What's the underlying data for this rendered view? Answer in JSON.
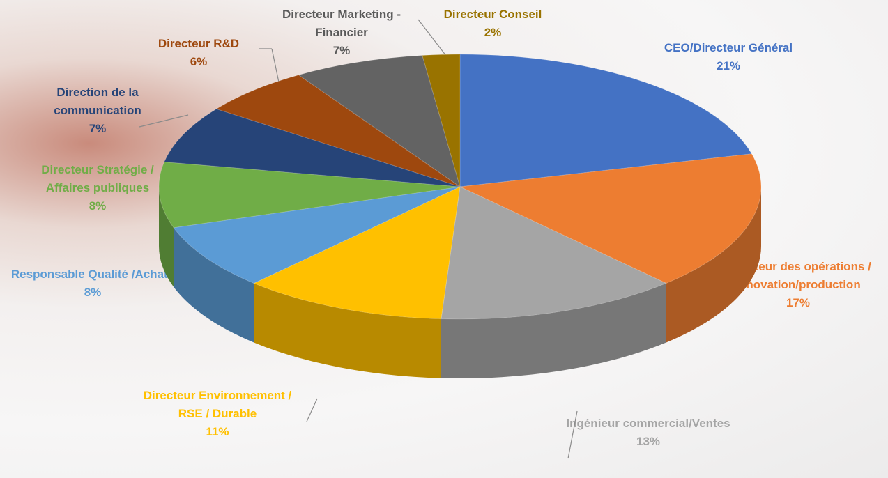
{
  "chart_data": {
    "type": "pie",
    "categories": [
      "CEO/Directeur Général",
      "Directeur des opérations / innovation/production",
      "Ingénieur commercial/Ventes",
      "Directeur Environnement / RSE / Durable",
      "Responsable Qualité /Achats",
      "Directeur Stratégie / Affaires publiques",
      "Direction de la communication",
      "Directeur R&D",
      "Directeur Marketing - Financier",
      "Directeur Conseil"
    ],
    "values": [
      21,
      17,
      13,
      11,
      8,
      8,
      7,
      6,
      7,
      2
    ],
    "value_labels": [
      "21%",
      "17%",
      "13%",
      "11%",
      "8%",
      "8%",
      "7%",
      "6%",
      "7%",
      "2%"
    ],
    "colors": [
      "#4472c4",
      "#ed7d31",
      "#a5a5a5",
      "#ffc000",
      "#5b9bd5",
      "#70ad47",
      "#264478",
      "#9e480e",
      "#636363",
      "#997300"
    ]
  }
}
